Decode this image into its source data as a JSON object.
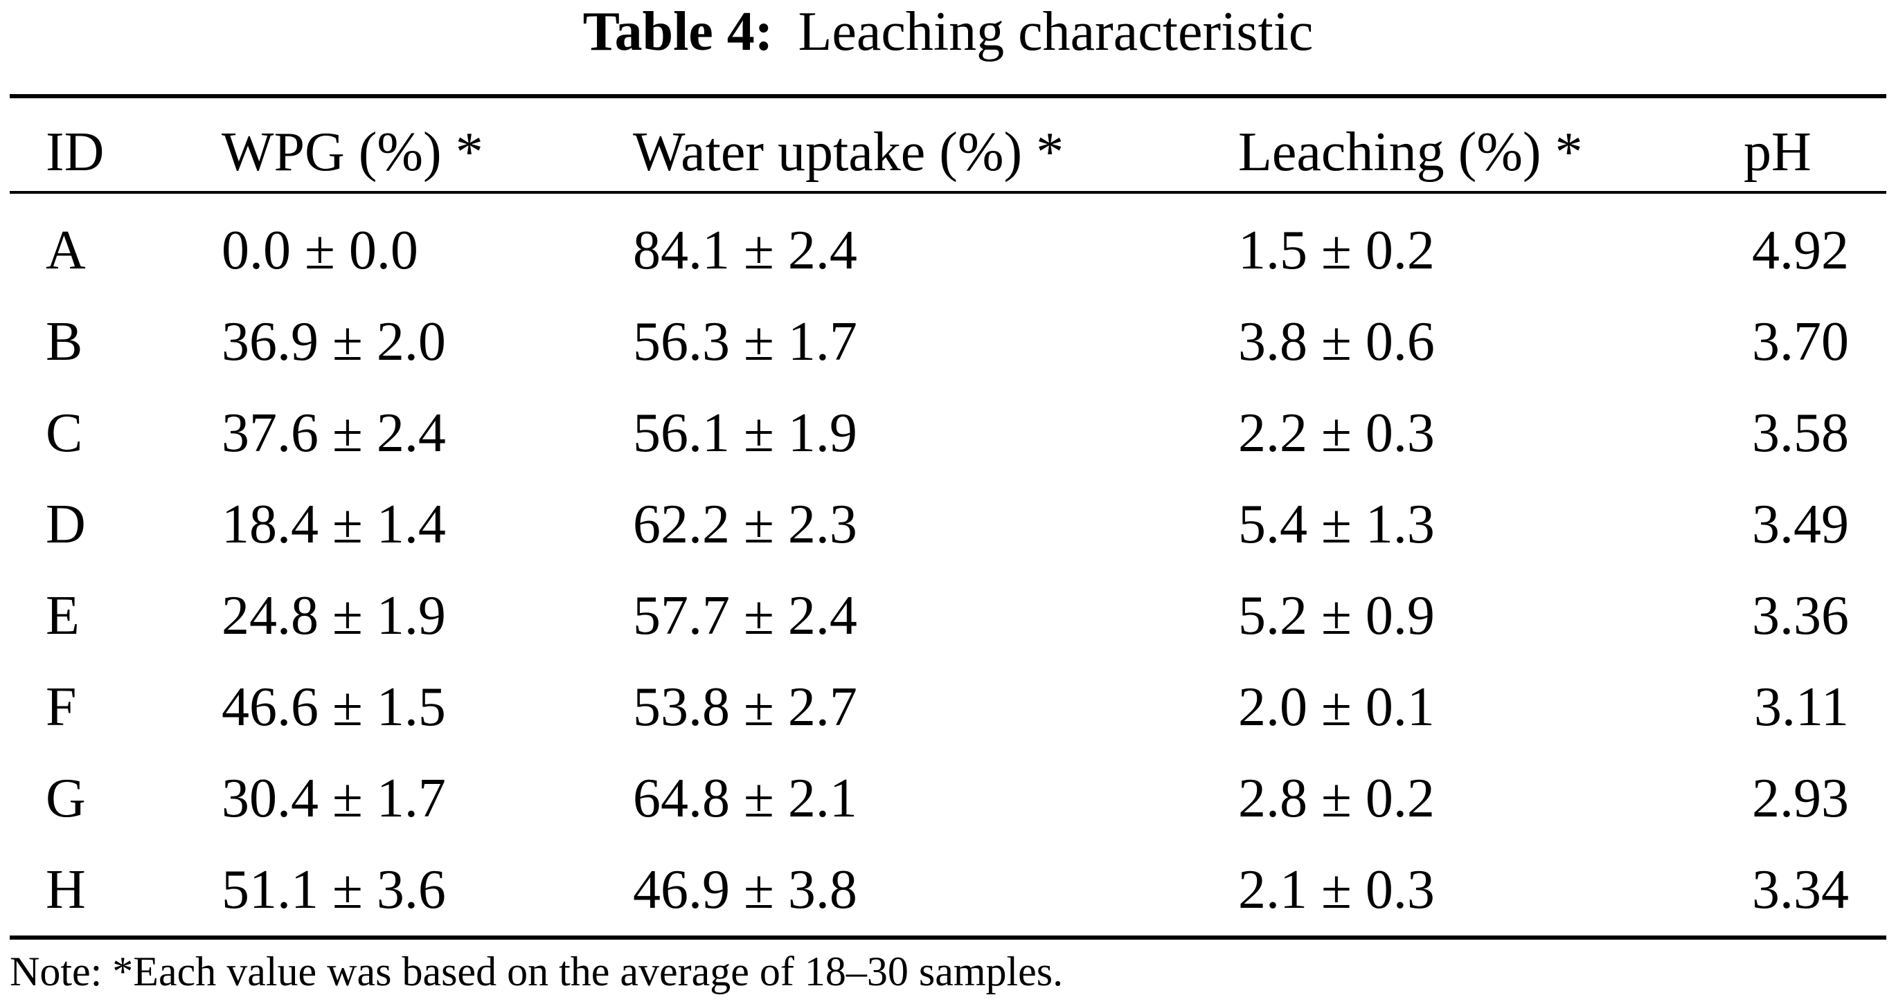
{
  "table": {
    "title_label": "Table 4:",
    "title_text": "Leaching characteristic",
    "columns": [
      "ID",
      "WPG (%) *",
      "Water uptake (%) *",
      "Leaching (%) *",
      "pH"
    ],
    "rows": [
      [
        "A",
        "0.0 ± 0.0",
        "84.1 ± 2.4",
        "1.5 ± 0.2",
        "4.92"
      ],
      [
        "B",
        "36.9 ± 2.0",
        "56.3 ± 1.7",
        "3.8 ± 0.6",
        "3.70"
      ],
      [
        "C",
        "37.6 ± 2.4",
        "56.1 ± 1.9",
        "2.2 ± 0.3",
        "3.58"
      ],
      [
        "D",
        "18.4 ± 1.4",
        "62.2 ± 2.3",
        "5.4 ± 1.3",
        "3.49"
      ],
      [
        "E",
        "24.8 ± 1.9",
        "57.7 ± 2.4",
        "5.2 ± 0.9",
        "3.36"
      ],
      [
        "F",
        "46.6 ± 1.5",
        "53.8 ± 2.7",
        "2.0 ± 0.1",
        "3.11"
      ],
      [
        "G",
        "30.4 ± 1.7",
        "64.8 ± 2.1",
        "2.8 ± 0.2",
        "2.93"
      ],
      [
        "H",
        "51.1 ± 3.6",
        "46.9 ± 3.8",
        "2.1 ± 0.3",
        "3.34"
      ]
    ],
    "note": "Note: *Each value was based on the average of 18–30 samples."
  }
}
